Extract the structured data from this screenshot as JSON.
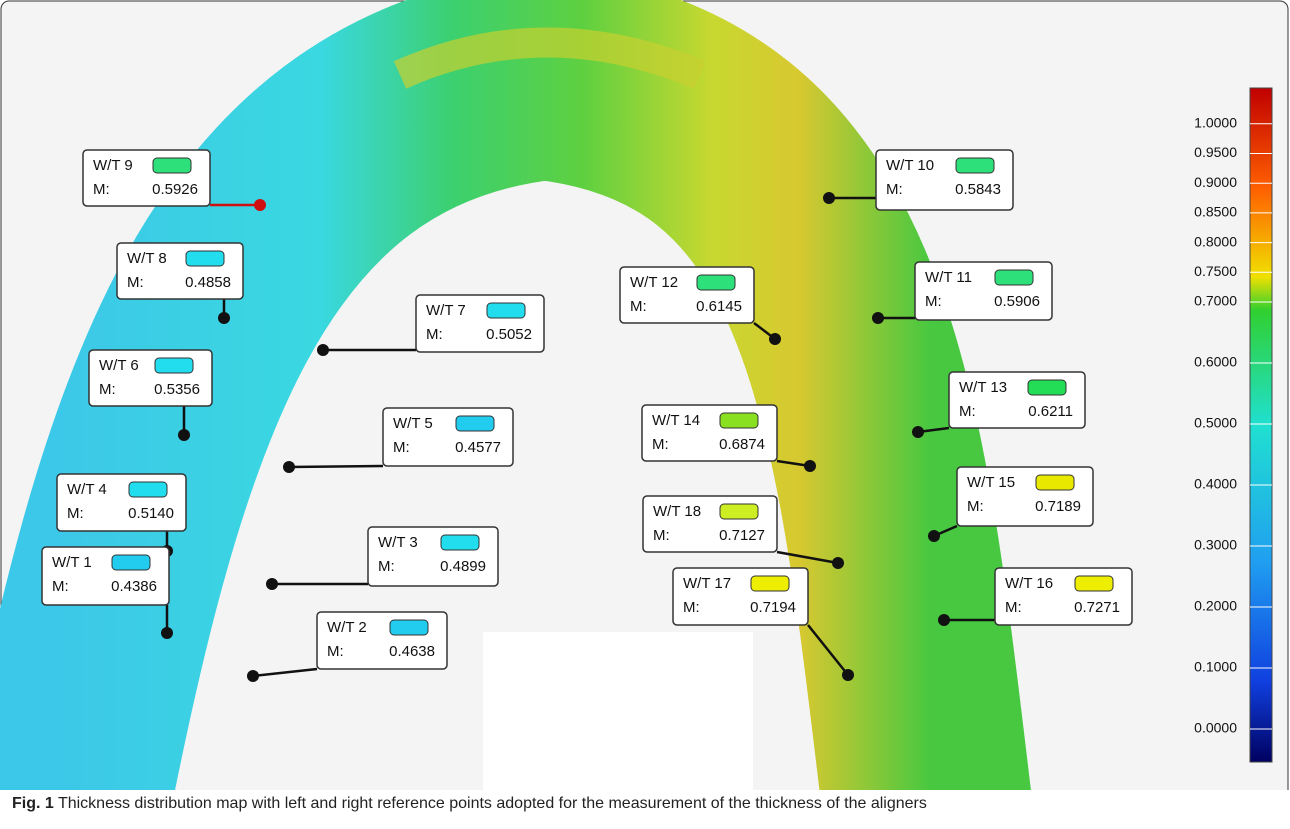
{
  "labels": [
    {
      "name": "W/T 9",
      "m": "M:",
      "value": "0.5926",
      "color": "#2ee07a"
    },
    {
      "name": "W/T 10",
      "m": "M:",
      "value": "0.5843",
      "color": "#2ee07a"
    },
    {
      "name": "W/T 8",
      "m": "M:",
      "value": "0.4858",
      "color": "#22ddee"
    },
    {
      "name": "W/T 7",
      "m": "M:",
      "value": "0.5052",
      "color": "#22ddee"
    },
    {
      "name": "W/T 12",
      "m": "M:",
      "value": "0.6145",
      "color": "#2ee07a"
    },
    {
      "name": "W/T 11",
      "m": "M:",
      "value": "0.5906",
      "color": "#2ee07a"
    },
    {
      "name": "W/T 6",
      "m": "M:",
      "value": "0.5356",
      "color": "#22ddee"
    },
    {
      "name": "W/T 5",
      "m": "M:",
      "value": "0.4577",
      "color": "#22ccee"
    },
    {
      "name": "W/T 14",
      "m": "M:",
      "value": "0.6874",
      "color": "#88e020"
    },
    {
      "name": "W/T 13",
      "m": "M:",
      "value": "0.6211",
      "color": "#22dd55"
    },
    {
      "name": "W/T 4",
      "m": "M:",
      "value": "0.5140",
      "color": "#22ddee"
    },
    {
      "name": "W/T 3",
      "m": "M:",
      "value": "0.4899",
      "color": "#22ddee"
    },
    {
      "name": "W/T 18",
      "m": "M:",
      "value": "0.7127",
      "color": "#ccee22"
    },
    {
      "name": "W/T 15",
      "m": "M:",
      "value": "0.7189",
      "color": "#e8e800"
    },
    {
      "name": "W/T 1",
      "m": "M:",
      "value": "0.4386",
      "color": "#22ccee"
    },
    {
      "name": "W/T 2",
      "m": "M:",
      "value": "0.4638",
      "color": "#22ccee"
    },
    {
      "name": "W/T 17",
      "m": "M:",
      "value": "0.7194",
      "color": "#eeee00"
    },
    {
      "name": "W/T 16",
      "m": "M:",
      "value": "0.7271",
      "color": "#eeee00"
    }
  ],
  "scale": {
    "ticks": [
      "1.0000",
      "0.9500",
      "0.9000",
      "0.8500",
      "0.8000",
      "0.7500",
      "0.7000",
      "0.6000",
      "0.5000",
      "0.4000",
      "0.3000",
      "0.2000",
      "0.1000",
      "0.0000"
    ]
  },
  "caption": {
    "label": "Fig. 1",
    "text": "Thickness distribution map with left and right reference points adopted for the measurement of the thickness of the aligners"
  }
}
